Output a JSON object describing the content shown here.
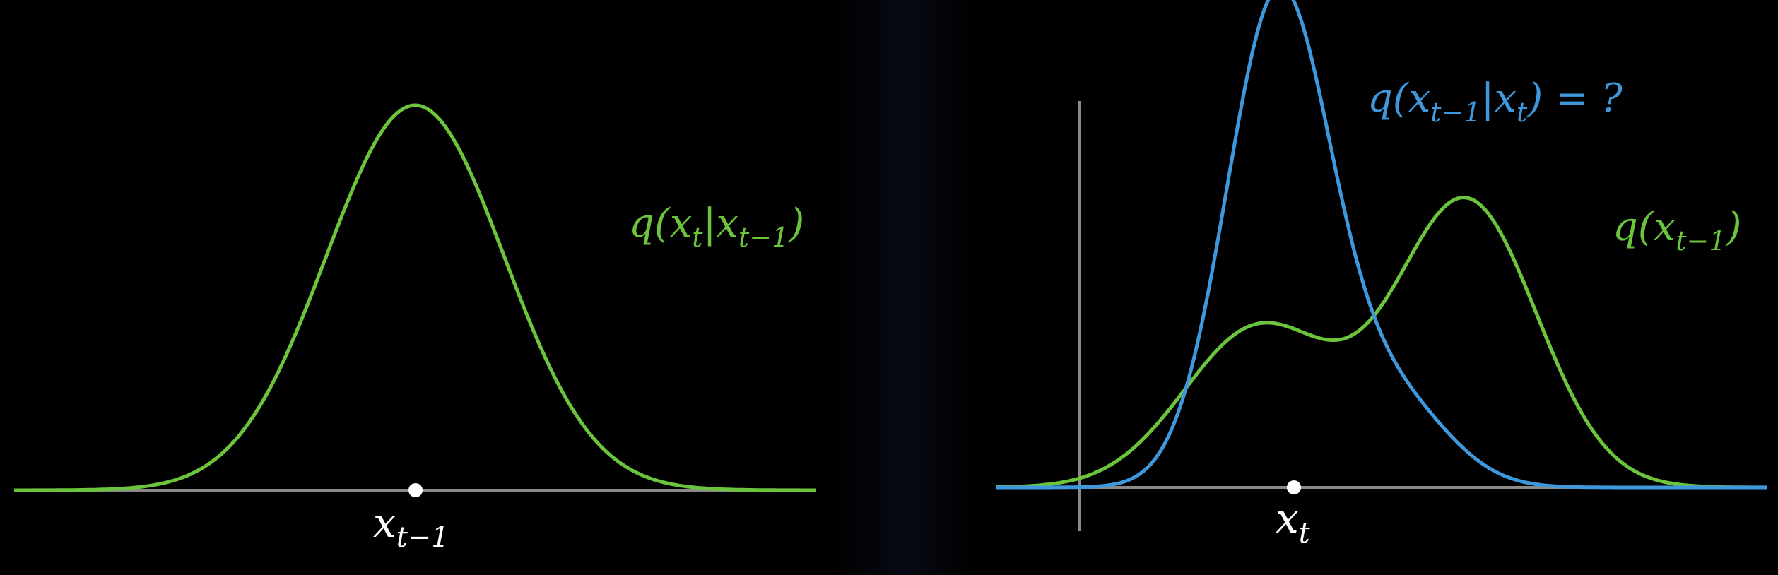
{
  "colors": {
    "background": "#000000",
    "green": "#6cc43c",
    "blue": "#3f97dc",
    "axis": "#8a8a8a",
    "point": "#ffffff",
    "label": "#ffffff"
  },
  "left_panel": {
    "curve_label": "q(x_t | x_{t-1})",
    "curve_label_parts": {
      "open": "q(x",
      "sub1": "t",
      "bar": "|x",
      "sub2": "t−1",
      "close": ")"
    },
    "point_label": "x_{t-1}",
    "point_label_parts": {
      "base": "x",
      "sub": "t−1"
    }
  },
  "right_panel": {
    "blue_label": "q(x_{t-1} | x_t) = ?",
    "blue_label_parts": {
      "open": "q(x",
      "sub1": "t−1",
      "bar": "|x",
      "sub2": "t",
      "close": ") = ?"
    },
    "green_label": "q(x_{t-1})",
    "green_label_parts": {
      "open": "q(x",
      "sub": "t−1",
      "close": ")"
    },
    "point_label": "x_t",
    "point_label_parts": {
      "base": "x",
      "sub": "t"
    }
  },
  "chart_data": [
    {
      "type": "line",
      "series": [
        {
          "name": "q(x_t | x_{t-1})",
          "kind": "gaussian",
          "color": "green",
          "mean": 0,
          "std": 1,
          "amplitude": 1
        }
      ],
      "xlim": [
        -4.5,
        4.5
      ],
      "marked_point": 0
    },
    {
      "type": "line",
      "series": [
        {
          "name": "q(x_{t-1})",
          "color": "green",
          "components": [
            {
              "mean": -0.4,
              "std": 0.8,
              "weight": 0.42
            },
            {
              "mean": 1.8,
              "std": 0.75,
              "weight": 0.75
            }
          ]
        },
        {
          "name": "q(x_{t-1} | x_t) = ?",
          "color": "blue",
          "components": [
            {
              "mean": -0.2,
              "std": 0.55,
              "weight": 1.28
            },
            {
              "mean": 1.0,
              "std": 0.6,
              "weight": 0.23
            }
          ]
        }
      ],
      "xlim": [
        -3.2,
        5.0
      ],
      "marked_point": 0
    }
  ]
}
